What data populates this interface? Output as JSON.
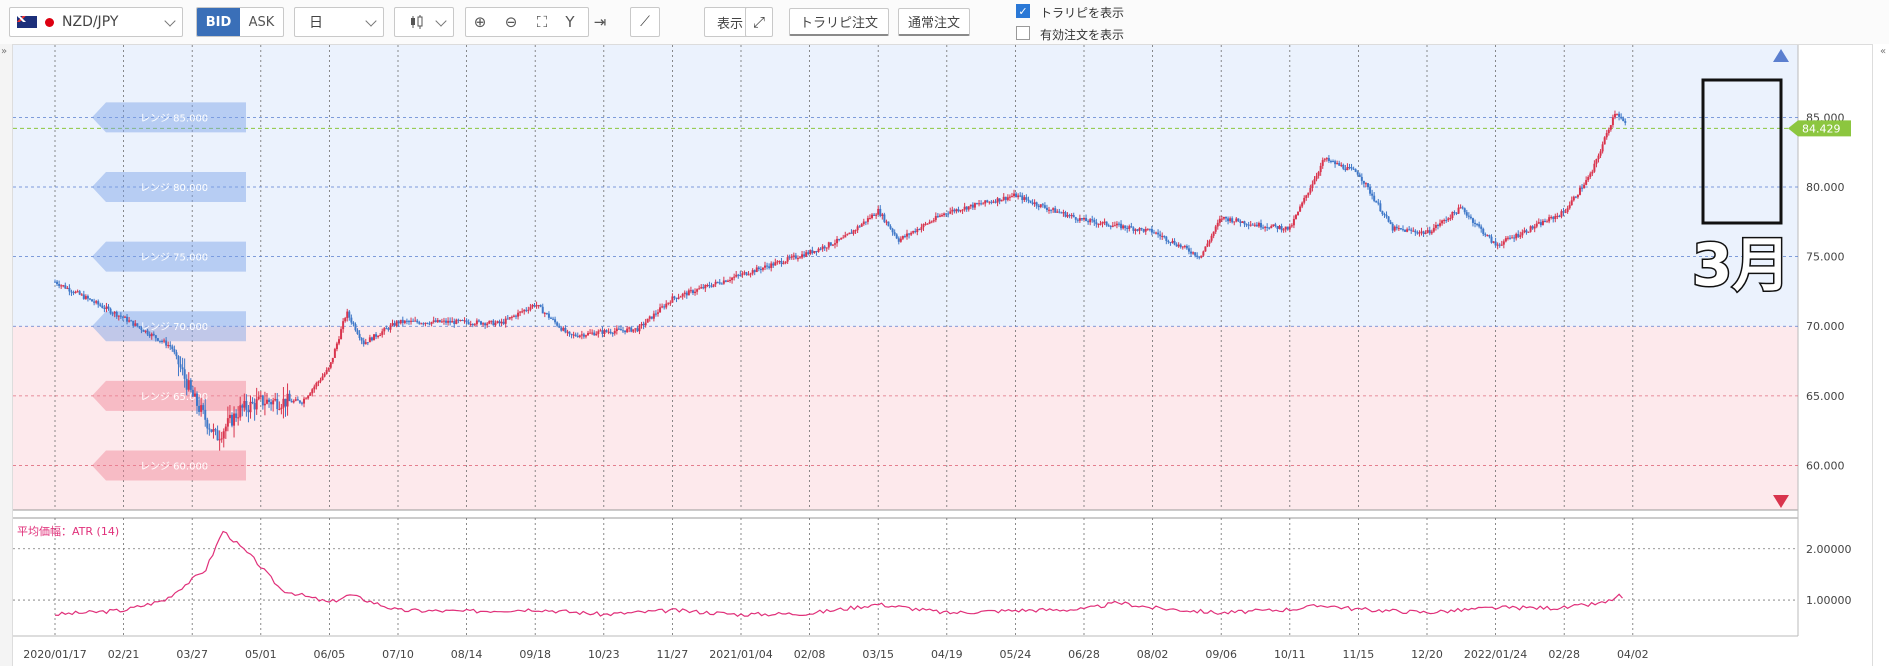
{
  "toolbar": {
    "pair": "NZD/JPY",
    "bid": "BID",
    "ask": "ASK",
    "timeframe": "日",
    "display": "表示",
    "trap_order": "トラリピ注文",
    "normal_order": "通常注文",
    "show_trap": "トラリピを表示",
    "show_active": "有効注文を表示"
  },
  "annotation": "3月",
  "colors": {
    "up": "#d9344d",
    "down": "#3f78c8",
    "buy_zone": "#ebf2fd",
    "sell_zone": "#fde9ec",
    "price_tag": "#8cc63f",
    "atr": "#e0307a"
  },
  "chart_data": {
    "type": "candlestick",
    "instrument": "NZD/JPY",
    "last_price": 84.429,
    "y_ticks": [
      "85.000",
      "80.000",
      "75.000",
      "70.000",
      "65.000",
      "60.000"
    ],
    "y_values": [
      85,
      80,
      75,
      70,
      65,
      60
    ],
    "ylim": [
      56.8,
      90.2
    ],
    "x_ticks": [
      "2020/01/17",
      "02/21",
      "03/27",
      "05/01",
      "06/05",
      "07/10",
      "08/14",
      "09/18",
      "10/23",
      "11/27",
      "2021/01/04",
      "02/08",
      "03/15",
      "04/19",
      "05/24",
      "06/28",
      "08/02",
      "09/06",
      "10/11",
      "11/15",
      "12/20",
      "2022/01/24",
      "02/28",
      "04/02"
    ],
    "close_path": [
      {
        "t": 0,
        "v": 73.2
      },
      {
        "t": 1.0,
        "v": 70.6
      },
      {
        "t": 1.7,
        "v": 68.5
      },
      {
        "t": 2.0,
        "v": 65.0
      },
      {
        "t": 2.35,
        "v": 62.0
      },
      {
        "t": 2.7,
        "v": 64.0
      },
      {
        "t": 3.0,
        "v": 64.6
      },
      {
        "t": 3.6,
        "v": 64.6
      },
      {
        "t": 4.0,
        "v": 67.0
      },
      {
        "t": 4.25,
        "v": 71.0
      },
      {
        "t": 4.5,
        "v": 68.8
      },
      {
        "t": 5.0,
        "v": 70.3
      },
      {
        "t": 6.0,
        "v": 70.3
      },
      {
        "t": 6.5,
        "v": 70.2
      },
      {
        "t": 7.0,
        "v": 71.6
      },
      {
        "t": 7.5,
        "v": 69.3
      },
      {
        "t": 8.0,
        "v": 69.6
      },
      {
        "t": 8.5,
        "v": 69.8
      },
      {
        "t": 9.0,
        "v": 72.0
      },
      {
        "t": 10.0,
        "v": 73.7
      },
      {
        "t": 11.0,
        "v": 75.3
      },
      {
        "t": 11.5,
        "v": 76.3
      },
      {
        "t": 12.0,
        "v": 78.3
      },
      {
        "t": 12.3,
        "v": 76.2
      },
      {
        "t": 13.0,
        "v": 78.2
      },
      {
        "t": 14.0,
        "v": 79.4
      },
      {
        "t": 14.5,
        "v": 78.4
      },
      {
        "t": 15.0,
        "v": 77.6
      },
      {
        "t": 16.0,
        "v": 76.8
      },
      {
        "t": 16.7,
        "v": 75.0
      },
      {
        "t": 17.0,
        "v": 77.8
      },
      {
        "t": 17.5,
        "v": 77.3
      },
      {
        "t": 18.0,
        "v": 77.0
      },
      {
        "t": 18.5,
        "v": 82.0
      },
      {
        "t": 19.0,
        "v": 81.0
      },
      {
        "t": 19.5,
        "v": 77.0
      },
      {
        "t": 20.0,
        "v": 76.7
      },
      {
        "t": 20.5,
        "v": 78.5
      },
      {
        "t": 21.0,
        "v": 75.8
      },
      {
        "t": 21.5,
        "v": 77.0
      },
      {
        "t": 22.0,
        "v": 78.2
      },
      {
        "t": 22.4,
        "v": 81.0
      },
      {
        "t": 22.75,
        "v": 85.5
      },
      {
        "t": 22.9,
        "v": 84.4
      }
    ],
    "atr_label": "平均価幅：ATR (14)",
    "atr_ticks": [
      "2.00000",
      "1.00000"
    ],
    "atr_values": [
      2.0,
      1.0
    ],
    "atr_ylim": [
      0.3,
      2.6
    ],
    "atr_path": [
      {
        "t": 0,
        "v": 0.72
      },
      {
        "t": 1.0,
        "v": 0.8
      },
      {
        "t": 1.6,
        "v": 1.0
      },
      {
        "t": 2.2,
        "v": 1.6
      },
      {
        "t": 2.45,
        "v": 2.35
      },
      {
        "t": 2.9,
        "v": 1.8
      },
      {
        "t": 3.3,
        "v": 1.2
      },
      {
        "t": 4.0,
        "v": 0.95
      },
      {
        "t": 4.3,
        "v": 1.1
      },
      {
        "t": 5.0,
        "v": 0.8
      },
      {
        "t": 6.0,
        "v": 0.78
      },
      {
        "t": 7.0,
        "v": 0.82
      },
      {
        "t": 8.0,
        "v": 0.72
      },
      {
        "t": 9.0,
        "v": 0.8
      },
      {
        "t": 10.0,
        "v": 0.72
      },
      {
        "t": 11.0,
        "v": 0.74
      },
      {
        "t": 12.0,
        "v": 0.92
      },
      {
        "t": 13.0,
        "v": 0.75
      },
      {
        "t": 14.0,
        "v": 0.8
      },
      {
        "t": 15.0,
        "v": 0.82
      },
      {
        "t": 15.5,
        "v": 0.95
      },
      {
        "t": 16.0,
        "v": 0.85
      },
      {
        "t": 17.0,
        "v": 0.75
      },
      {
        "t": 18.0,
        "v": 0.82
      },
      {
        "t": 18.5,
        "v": 0.9
      },
      {
        "t": 19.0,
        "v": 0.82
      },
      {
        "t": 20.0,
        "v": 0.76
      },
      {
        "t": 21.0,
        "v": 0.85
      },
      {
        "t": 22.0,
        "v": 0.85
      },
      {
        "t": 22.6,
        "v": 0.95
      },
      {
        "t": 22.8,
        "v": 1.08
      },
      {
        "t": 22.9,
        "v": 1.02
      }
    ],
    "range_labels": [
      {
        "price": "85.000",
        "text": "レンジ 85.000"
      },
      {
        "price": "80.000",
        "text": "レンジ 80.000"
      },
      {
        "price": "75.000",
        "text": "レンジ 75.000"
      },
      {
        "price": "70.000",
        "text": "レンジ 70.000"
      },
      {
        "price": "65.000",
        "text": "レンジ 65.000"
      },
      {
        "price": "60.000",
        "text": "レンジ 60.000"
      }
    ]
  }
}
